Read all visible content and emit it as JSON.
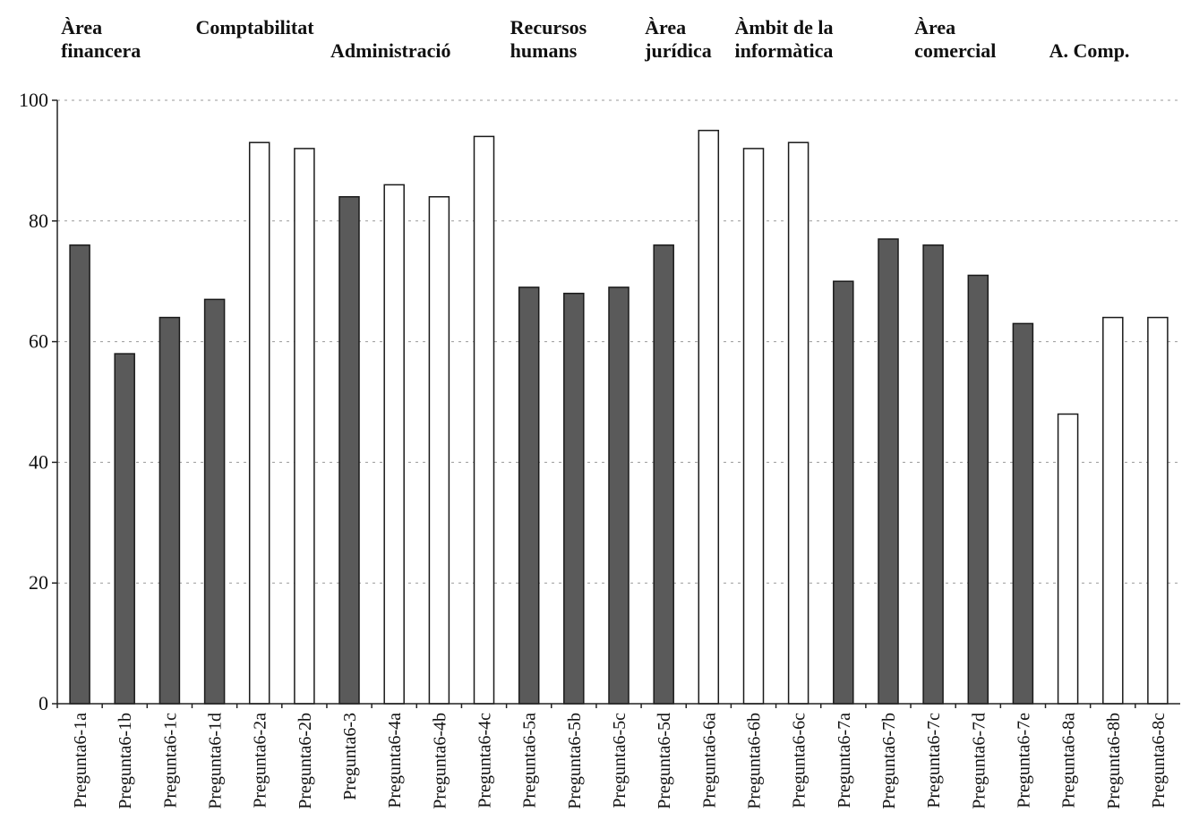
{
  "chart_data": {
    "type": "bar",
    "title": "",
    "xlabel": "",
    "ylabel": "",
    "ylim": [
      0,
      100
    ],
    "yticks": [
      0,
      20,
      40,
      60,
      80,
      100
    ],
    "grid": true,
    "categories": [
      "Pregunta6-1a",
      "Pregunta6-1b",
      "Pregunta6-1c",
      "Pregunta6-1d",
      "Pregunta6-2a",
      "Pregunta6-2b",
      "Pregunta6-3",
      "Pregunta6-4a",
      "Pregunta6-4b",
      "Pregunta6-4c",
      "Pregunta6-5a",
      "Pregunta6-5b",
      "Pregunta6-5c",
      "Pregunta6-5d",
      "Pregunta6-6a",
      "Pregunta6-6b",
      "Pregunta6-6c",
      "Pregunta6-7a",
      "Pregunta6-7b",
      "Pregunta6-7c",
      "Pregunta6-7d",
      "Pregunta6-7e",
      "Pregunta6-8a",
      "Pregunta6-8b",
      "Pregunta6-8c"
    ],
    "values": [
      76,
      58,
      64,
      67,
      93,
      92,
      84,
      86,
      84,
      94,
      69,
      68,
      69,
      76,
      95,
      92,
      93,
      70,
      77,
      76,
      71,
      63,
      48,
      64,
      64
    ],
    "fills": [
      "dark",
      "dark",
      "dark",
      "dark",
      "light",
      "light",
      "dark",
      "light",
      "light",
      "light",
      "dark",
      "dark",
      "dark",
      "dark",
      "light",
      "light",
      "light",
      "dark",
      "dark",
      "dark",
      "dark",
      "dark",
      "light",
      "light",
      "light"
    ],
    "colors": {
      "dark": "#5a5a5a",
      "light": "#ffffff"
    },
    "area_labels": [
      {
        "lines": [
          "Àrea",
          "financera"
        ],
        "first_bar": 0
      },
      {
        "lines": [
          "Comptabilitat"
        ],
        "first_bar": 3
      },
      {
        "lines": [
          "Administració"
        ],
        "first_bar": 6
      },
      {
        "lines": [
          "Recursos",
          "humans"
        ],
        "first_bar": 10
      },
      {
        "lines": [
          "Àrea",
          "jurídica"
        ],
        "first_bar": 13
      },
      {
        "lines": [
          "Àmbit de la",
          "informàtica"
        ],
        "first_bar": 15
      },
      {
        "lines": [
          "Àrea",
          "comercial"
        ],
        "first_bar": 19
      },
      {
        "lines": [
          "A. Comp."
        ],
        "first_bar": 22
      }
    ]
  }
}
